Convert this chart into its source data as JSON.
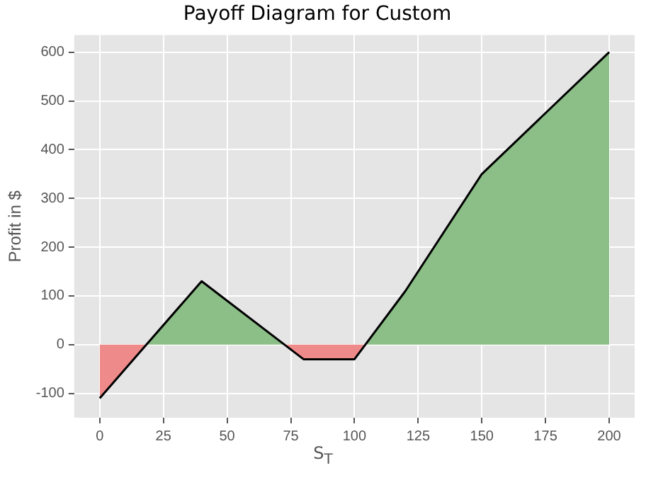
{
  "chart_data": {
    "type": "area",
    "title": "Payoff Diagram for Custom",
    "xlabel": "S$_{T}$",
    "ylabel": "Profit in $",
    "x": [
      0,
      40,
      80,
      100,
      120,
      150,
      200
    ],
    "series": [
      {
        "color": "#8bbf87",
        "x": [
          18.3,
          40,
          72.5,
          80,
          100,
          104.3,
          120,
          150,
          200
        ],
        "values": [
          0,
          130,
          0,
          null,
          null,
          0,
          110,
          350,
          600
        ]
      },
      {
        "color": "#ef8a8a",
        "x": [
          0,
          18.3,
          72.5,
          80,
          100,
          104.3
        ],
        "values": [
          -110,
          0,
          0,
          -30,
          -30,
          0
        ]
      },
      {
        "type": "line",
        "color": "#000000",
        "values": [
          -110,
          130,
          -30,
          -30,
          110,
          350,
          600
        ]
      }
    ],
    "xlim": [
      -10,
      210
    ],
    "xticks": [
      0,
      25,
      50,
      75,
      100,
      125,
      150,
      175,
      200
    ],
    "ylim": [
      -150,
      635
    ],
    "yticks": [
      -100,
      0,
      100,
      200,
      300,
      400,
      500,
      600
    ],
    "grid": true,
    "legend": false
  }
}
